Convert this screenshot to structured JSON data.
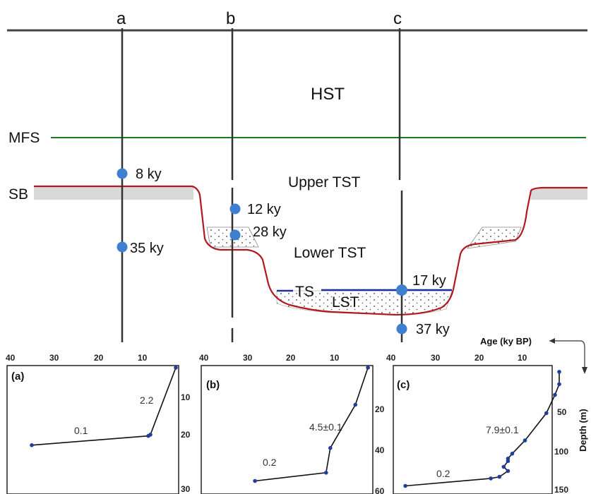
{
  "wells": [
    {
      "label": "a"
    },
    {
      "label": "b"
    },
    {
      "label": "c"
    }
  ],
  "surfaces": {
    "mfs": "MFS",
    "sb": "SB",
    "ts": "TS"
  },
  "units": {
    "hst": "HST",
    "upper_tst": "Upper TST",
    "lower_tst": "Lower TST",
    "lst": "LST"
  },
  "samples": [
    {
      "well": "a",
      "age": "8 ky"
    },
    {
      "well": "a",
      "age": "35 ky"
    },
    {
      "well": "b",
      "age": "12 ky"
    },
    {
      "well": "b",
      "age": "28 ky"
    },
    {
      "well": "c",
      "age": "17 ky"
    },
    {
      "well": "c",
      "age": "37 ky"
    }
  ],
  "colors": {
    "mfs": "#1a7a1a",
    "sb": "#b01822",
    "ts": "#1f2f9a",
    "sample": "#3f7fd0",
    "fill_gray": "#d9d9d9"
  },
  "axis_labels": {
    "age": "Age (ky BP)",
    "depth": "Depth (m)"
  },
  "panels": [
    {
      "tag": "(a)",
      "age_ticks": [
        "40",
        "30",
        "20",
        "10"
      ],
      "depth_ticks": [
        "10",
        "20",
        "30"
      ],
      "rates": [
        "2.2",
        "0.1"
      ],
      "points": [
        {
          "age": 35,
          "depth": 18.5
        },
        {
          "age": 7.5,
          "depth": 16.3
        },
        {
          "age": 7.0,
          "depth": 16.0
        },
        {
          "age": 1.0,
          "depth": 0
        }
      ]
    },
    {
      "tag": "(b)",
      "age_ticks": [
        "40",
        "30",
        "20",
        "10"
      ],
      "depth_ticks": [
        "20",
        "40",
        "60"
      ],
      "rates": [
        "4.5±0.1",
        "0.2"
      ],
      "points": [
        {
          "age": 28,
          "depth": 55
        },
        {
          "age": 11,
          "depth": 51
        },
        {
          "age": 10,
          "depth": 39
        },
        {
          "age": 4,
          "depth": 18
        },
        {
          "age": 1,
          "depth": 0
        }
      ]
    },
    {
      "tag": "(c)",
      "age_ticks": [
        "40",
        "30",
        "20",
        "10"
      ],
      "depth_ticks": [
        "50",
        "100",
        "150"
      ],
      "rates": [
        "7.9±0.1",
        "0.2"
      ],
      "points": [
        {
          "age": 37,
          "depth": 143
        },
        {
          "age": 17,
          "depth": 134
        },
        {
          "age": 15,
          "depth": 132
        },
        {
          "age": 13,
          "depth": 125
        },
        {
          "age": 14,
          "depth": 120
        },
        {
          "age": 13,
          "depth": 113
        },
        {
          "age": 13,
          "depth": 110
        },
        {
          "age": 12,
          "depth": 104
        },
        {
          "age": 9,
          "depth": 88
        },
        {
          "age": 4,
          "depth": 55
        },
        {
          "age": 2,
          "depth": 33
        },
        {
          "age": 1,
          "depth": 20
        },
        {
          "age": 1,
          "depth": 5
        }
      ]
    }
  ]
}
